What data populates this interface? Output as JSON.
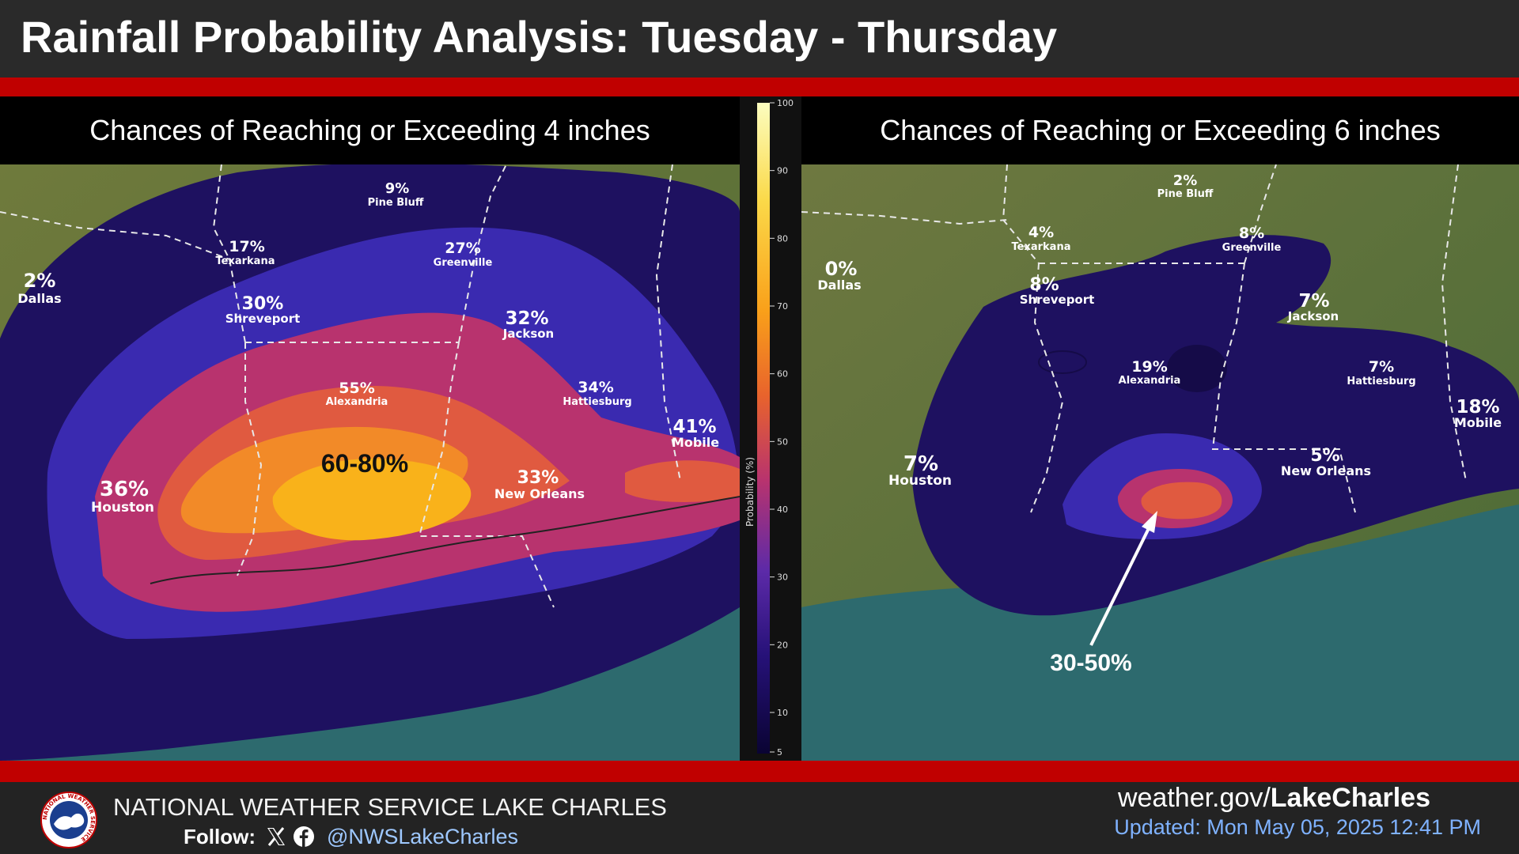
{
  "header": {
    "title": "Rainfall Probability Analysis: Tuesday - Thursday"
  },
  "left_panel": {
    "subtitle": "Chances of Reaching or Exceeding 4 inches",
    "max_label": "60-80%",
    "cities": [
      {
        "name": "Pine Bluff",
        "pct": "9%"
      },
      {
        "name": "Texarkana",
        "pct": "17%"
      },
      {
        "name": "Greenville",
        "pct": "27%"
      },
      {
        "name": "Dallas",
        "pct": "2%"
      },
      {
        "name": "Shreveport",
        "pct": "30%"
      },
      {
        "name": "Jackson",
        "pct": "32%"
      },
      {
        "name": "Alexandria",
        "pct": "55%"
      },
      {
        "name": "Hattiesburg",
        "pct": "34%"
      },
      {
        "name": "Mobile",
        "pct": "41%"
      },
      {
        "name": "Houston",
        "pct": "36%"
      },
      {
        "name": "New Orleans",
        "pct": "33%"
      }
    ]
  },
  "right_panel": {
    "subtitle": "Chances of Reaching or Exceeding 6 inches",
    "max_label": "30-50%",
    "cities": [
      {
        "name": "Pine Bluff",
        "pct": "2%"
      },
      {
        "name": "Texarkana",
        "pct": "4%"
      },
      {
        "name": "Greenville",
        "pct": "8%"
      },
      {
        "name": "Dallas",
        "pct": "0%"
      },
      {
        "name": "Shreveport",
        "pct": "8%"
      },
      {
        "name": "Jackson",
        "pct": "7%"
      },
      {
        "name": "Alexandria",
        "pct": "19%"
      },
      {
        "name": "Hattiesburg",
        "pct": "7%"
      },
      {
        "name": "Mobile",
        "pct": "18%"
      },
      {
        "name": "Houston",
        "pct": "7%"
      },
      {
        "name": "New Orleans",
        "pct": "5%"
      }
    ]
  },
  "legend": {
    "title": "Probability (%)",
    "ticks": [
      "100",
      "90",
      "80",
      "70",
      "60",
      "50",
      "40",
      "30",
      "20",
      "10",
      "5"
    ]
  },
  "footer": {
    "org": "NATIONAL WEATHER SERVICE LAKE CHARLES",
    "follow_label": "Follow:",
    "handle": "@NWSLakeCharles",
    "website_prefix": "weather.gov/",
    "website_bold": "LakeCharles",
    "updated": "Updated: Mon May 05, 2025 12:41 PM",
    "logo_text": "NATIONAL WEATHER SERVICE"
  },
  "colors": {
    "banner_red": "#c00000",
    "prob_5_20": "#1e1160",
    "prob_20_30": "#3a2ab0",
    "prob_30_40": "#b8336e",
    "prob_40_50": "#e05a40",
    "prob_50_60": "#f28a28",
    "prob_60_80": "#f9b21a"
  }
}
